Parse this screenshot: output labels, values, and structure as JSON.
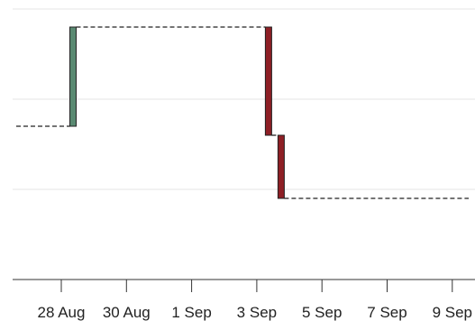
{
  "chart_data": {
    "type": "waterfall",
    "title": "",
    "xlabel": "",
    "ylabel": "",
    "x_ticks": [
      "28 Aug",
      "30 Aug",
      "1 Sep",
      "3 Sep",
      "5 Sep",
      "7 Sep",
      "9 Sep"
    ],
    "y_range": [
      0,
      3
    ],
    "grid": "horizontal",
    "start_value": 1.7,
    "end_value": 0.9,
    "colors": {
      "increase": "#5a8a72",
      "decrease": "#8e1f25"
    },
    "steps": [
      {
        "date": "28 Aug",
        "start": 1.7,
        "end": 2.8
      },
      {
        "date": "3 Sep",
        "start": 2.8,
        "end": 1.6
      },
      {
        "date": "3 Sep",
        "start": 1.6,
        "end": 0.9
      }
    ]
  }
}
